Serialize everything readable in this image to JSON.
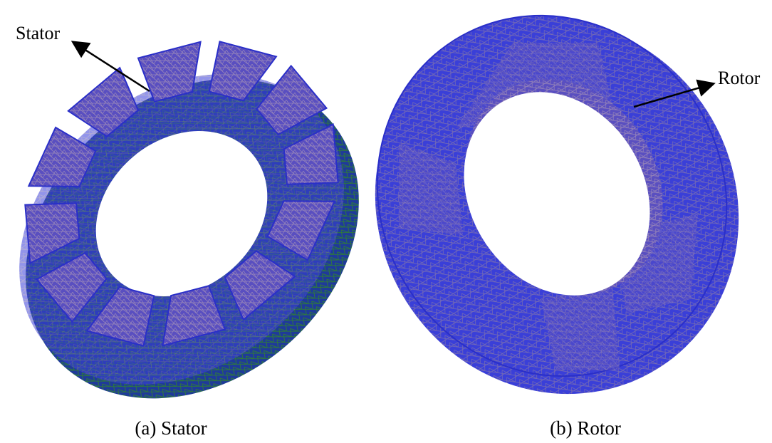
{
  "labels": {
    "stator": "Stator",
    "rotor": "Rotor"
  },
  "captions": {
    "a": "(a) Stator",
    "b": "(b) Rotor"
  }
}
